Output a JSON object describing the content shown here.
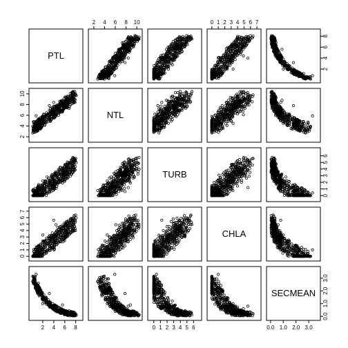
{
  "chart_data": {
    "type": "scatter",
    "kind": "scatterplot-matrix",
    "point_style": "open-circle",
    "variables": [
      {
        "name": "PTL",
        "range": [
          0,
          8.8
        ],
        "ticks": [
          2,
          4,
          6,
          8
        ]
      },
      {
        "name": "NTL",
        "range": [
          1.5,
          10.5
        ],
        "ticks": [
          2,
          4,
          6,
          8,
          10
        ]
      },
      {
        "name": "TURB",
        "range": [
          -0.5,
          6.8
        ],
        "ticks": [
          0,
          1,
          2,
          3,
          4,
          5,
          6
        ]
      },
      {
        "name": "CHLA",
        "range": [
          -0.3,
          7.2
        ],
        "ticks": [
          0,
          1,
          2,
          3,
          4,
          5,
          6,
          7
        ]
      },
      {
        "name": "SECMEAN",
        "range": [
          -0.1,
          3.7
        ],
        "ticks": [
          0.0,
          0.5,
          1.0,
          1.5,
          2.0,
          2.5,
          3.0
        ]
      }
    ],
    "axis_sides": {
      "top": [
        1,
        3
      ],
      "bottom": [
        0,
        2,
        4
      ],
      "left": [
        1,
        3
      ],
      "right": [
        0,
        2,
        4
      ]
    },
    "tick_text": {
      "0": [
        "2",
        "4",
        "6",
        "8"
      ],
      "1": [
        "2",
        "4",
        "6",
        "8",
        "10"
      ],
      "2": [
        "0",
        "1",
        "2",
        "3",
        "4",
        "5",
        "6"
      ],
      "3": [
        "0",
        "1",
        "2",
        "3",
        "4",
        "5",
        "6",
        "7"
      ],
      "4": [
        "0.0",
        "1.0",
        "2.0",
        "3.0"
      ]
    },
    "tick_text_values": {
      "0": [
        2,
        4,
        6,
        8
      ],
      "1": [
        2,
        4,
        6,
        8,
        10
      ],
      "2": [
        0,
        1,
        2,
        3,
        4,
        5,
        6
      ],
      "3": [
        0,
        1,
        2,
        3,
        4,
        5,
        6,
        7
      ],
      "4": [
        0,
        1,
        2,
        3
      ]
    },
    "sample_records": [
      [
        0.5,
        4.2,
        0.1,
        0.2,
        2.9
      ],
      [
        1.0,
        4.8,
        0.3,
        0.6,
        2.4
      ],
      [
        1.4,
        5.1,
        0.5,
        0.9,
        2.1
      ],
      [
        1.8,
        5.5,
        0.8,
        1.1,
        1.9
      ],
      [
        2.2,
        5.7,
        1.0,
        1.4,
        1.7
      ],
      [
        2.6,
        6.0,
        1.3,
        1.8,
        1.5
      ],
      [
        3.0,
        6.3,
        1.5,
        2.1,
        1.3
      ],
      [
        3.4,
        6.6,
        1.8,
        2.4,
        1.1
      ],
      [
        3.8,
        6.9,
        2.1,
        2.8,
        1.0
      ],
      [
        4.2,
        7.1,
        2.3,
        3.1,
        0.9
      ],
      [
        4.6,
        7.4,
        2.6,
        3.4,
        0.8
      ],
      [
        5.0,
        7.7,
        2.9,
        3.7,
        0.7
      ],
      [
        5.4,
        8.0,
        3.2,
        4.0,
        0.6
      ],
      [
        5.8,
        8.3,
        3.5,
        4.4,
        0.5
      ],
      [
        6.2,
        8.6,
        3.9,
        4.8,
        0.4
      ],
      [
        6.6,
        8.9,
        4.2,
        5.1,
        0.35
      ],
      [
        7.0,
        9.2,
        4.6,
        5.5,
        0.3
      ],
      [
        7.5,
        9.5,
        5.1,
        5.9,
        0.25
      ],
      [
        8.0,
        9.8,
        5.6,
        6.4,
        0.2
      ],
      [
        2.0,
        4.5,
        2.2,
        3.3,
        1.0
      ],
      [
        3.2,
        7.8,
        0.6,
        1.6,
        1.8
      ],
      [
        4.4,
        6.1,
        3.6,
        4.9,
        0.6
      ],
      [
        5.6,
        8.8,
        1.9,
        2.6,
        0.9
      ],
      [
        1.2,
        3.6,
        0.2,
        0.4,
        2.6
      ],
      [
        6.8,
        7.3,
        4.8,
        3.9,
        0.3
      ],
      [
        2.8,
        5.2,
        2.8,
        2.0,
        1.2
      ],
      [
        4.0,
        8.4,
        1.2,
        5.6,
        0.8
      ],
      [
        0.8,
        5.9,
        0.4,
        1.0,
        3.3
      ],
      [
        3.6,
        6.7,
        3.0,
        3.0,
        0.7
      ],
      [
        5.2,
        7.0,
        2.0,
        4.6,
        0.5
      ]
    ]
  }
}
